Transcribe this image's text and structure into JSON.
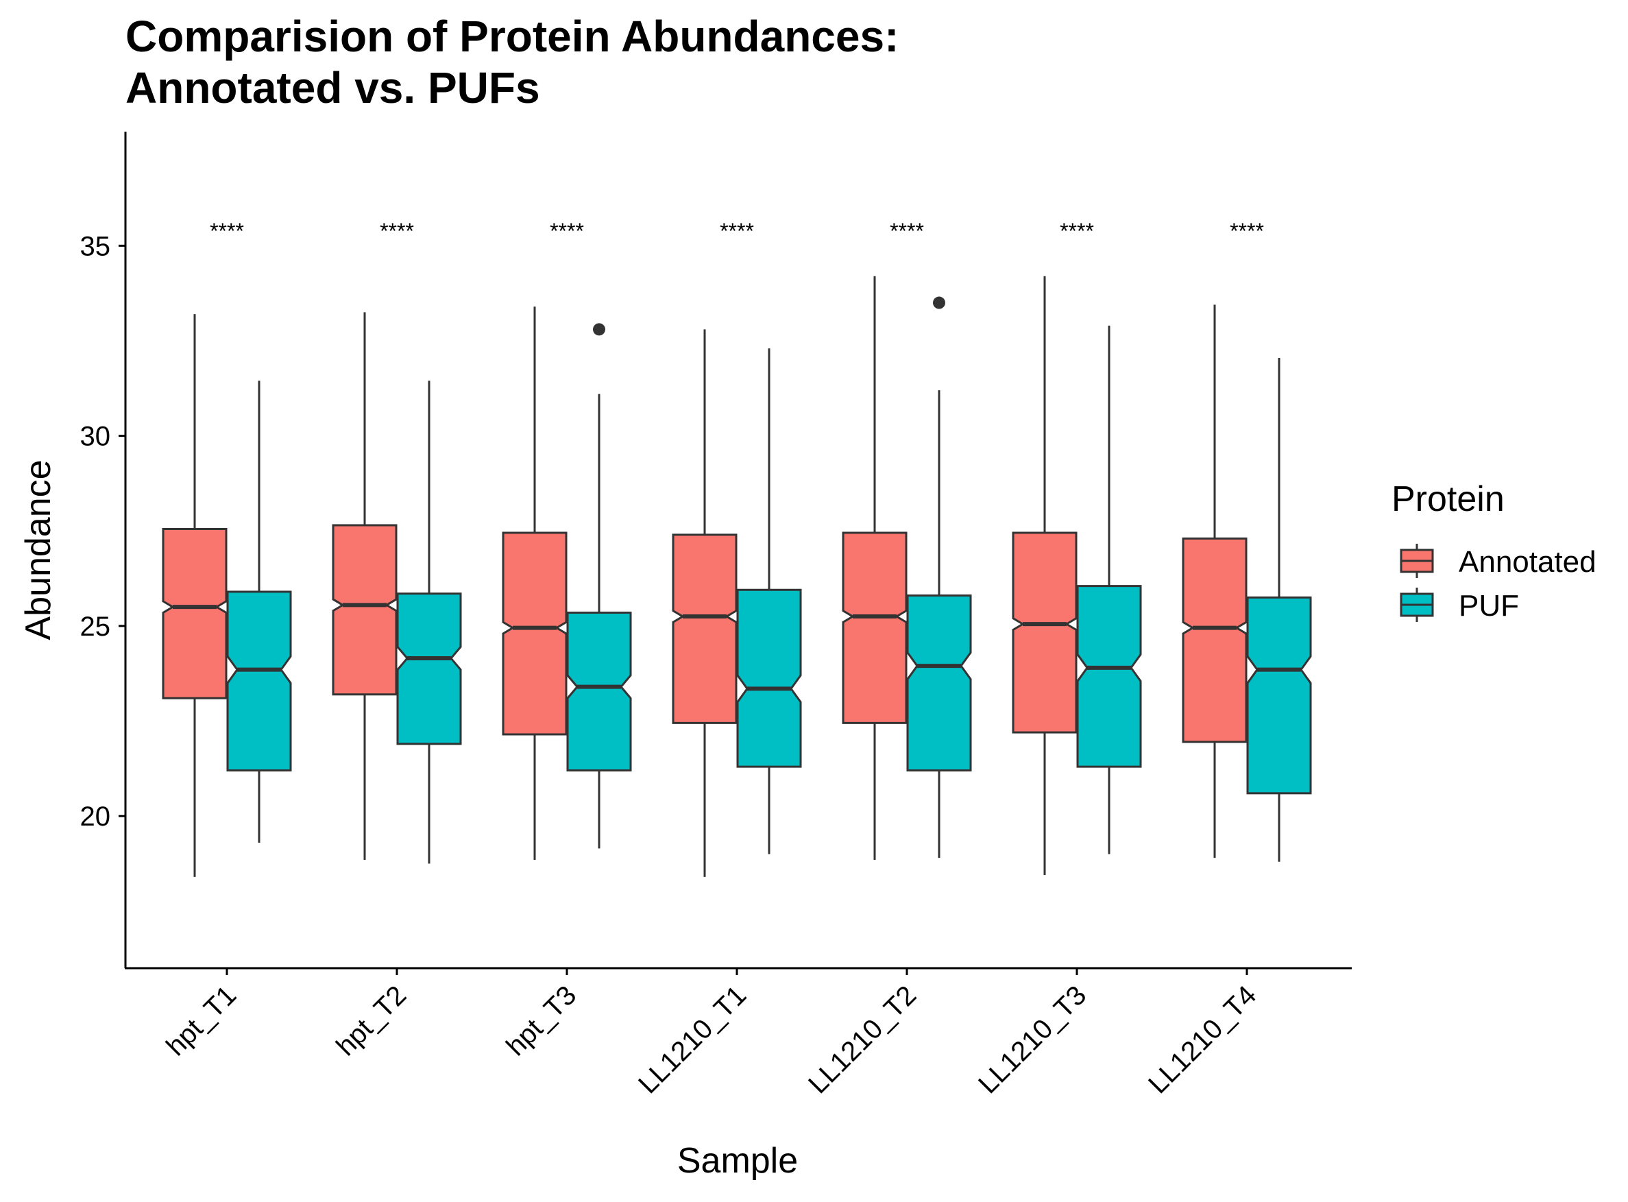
{
  "chart_data": {
    "type": "boxplot",
    "title_lines": [
      "Comparision of Protein Abundances:",
      "Annotated vs. PUFs"
    ],
    "xlabel": "Sample",
    "ylabel": "Abundance",
    "ylim": [
      16,
      38
    ],
    "y_ticks": [
      20,
      25,
      30,
      35
    ],
    "notched": true,
    "categories": [
      "hpt_T1",
      "hpt_T2",
      "hpt_T3",
      "LL1210_T1",
      "LL1210_T2",
      "LL1210_T3",
      "LL1210_T4"
    ],
    "significance": [
      "****",
      "****",
      "****",
      "****",
      "****",
      "****",
      "****"
    ],
    "legend": {
      "title": "Protein",
      "position": "right"
    },
    "series": [
      {
        "name": "Annotated",
        "color": "#F8766D",
        "boxes": [
          {
            "whisker_low": 18.4,
            "q1": 23.1,
            "median": 25.5,
            "q3": 27.55,
            "whisker_high": 33.2,
            "notch_low": 25.35,
            "notch_high": 25.65,
            "outliers": []
          },
          {
            "whisker_low": 18.85,
            "q1": 23.2,
            "median": 25.55,
            "q3": 27.65,
            "whisker_high": 33.25,
            "notch_low": 25.4,
            "notch_high": 25.7,
            "outliers": []
          },
          {
            "whisker_low": 18.85,
            "q1": 22.15,
            "median": 24.95,
            "q3": 27.45,
            "whisker_high": 33.4,
            "notch_low": 24.8,
            "notch_high": 25.1,
            "outliers": []
          },
          {
            "whisker_low": 18.4,
            "q1": 22.45,
            "median": 25.25,
            "q3": 27.4,
            "whisker_high": 32.8,
            "notch_low": 25.1,
            "notch_high": 25.4,
            "outliers": []
          },
          {
            "whisker_low": 18.85,
            "q1": 22.45,
            "median": 25.25,
            "q3": 27.45,
            "whisker_high": 34.2,
            "notch_low": 25.1,
            "notch_high": 25.4,
            "outliers": []
          },
          {
            "whisker_low": 18.45,
            "q1": 22.2,
            "median": 25.05,
            "q3": 27.45,
            "whisker_high": 34.2,
            "notch_low": 24.9,
            "notch_high": 25.2,
            "outliers": []
          },
          {
            "whisker_low": 18.9,
            "q1": 21.95,
            "median": 24.95,
            "q3": 27.3,
            "whisker_high": 33.45,
            "notch_low": 24.8,
            "notch_high": 25.1,
            "outliers": []
          }
        ]
      },
      {
        "name": "PUF",
        "color": "#00BFC4",
        "boxes": [
          {
            "whisker_low": 19.3,
            "q1": 21.2,
            "median": 23.85,
            "q3": 25.9,
            "whisker_high": 31.45,
            "notch_low": 23.5,
            "notch_high": 24.2,
            "outliers": []
          },
          {
            "whisker_low": 18.75,
            "q1": 21.9,
            "median": 24.15,
            "q3": 25.85,
            "whisker_high": 31.45,
            "notch_low": 23.85,
            "notch_high": 24.45,
            "outliers": []
          },
          {
            "whisker_low": 19.15,
            "q1": 21.2,
            "median": 23.4,
            "q3": 25.35,
            "whisker_high": 31.1,
            "notch_low": 23.1,
            "notch_high": 23.7,
            "outliers": [
              32.8
            ]
          },
          {
            "whisker_low": 19.0,
            "q1": 21.3,
            "median": 23.35,
            "q3": 25.95,
            "whisker_high": 32.3,
            "notch_low": 23.0,
            "notch_high": 23.7,
            "outliers": []
          },
          {
            "whisker_low": 18.9,
            "q1": 21.2,
            "median": 23.95,
            "q3": 25.8,
            "whisker_high": 31.2,
            "notch_low": 23.6,
            "notch_high": 24.3,
            "outliers": [
              33.5
            ]
          },
          {
            "whisker_low": 19.0,
            "q1": 21.3,
            "median": 23.9,
            "q3": 26.05,
            "whisker_high": 32.9,
            "notch_low": 23.55,
            "notch_high": 24.25,
            "outliers": []
          },
          {
            "whisker_low": 18.8,
            "q1": 20.6,
            "median": 23.85,
            "q3": 25.75,
            "whisker_high": 32.05,
            "notch_low": 23.5,
            "notch_high": 24.2,
            "outliers": []
          }
        ]
      }
    ]
  }
}
